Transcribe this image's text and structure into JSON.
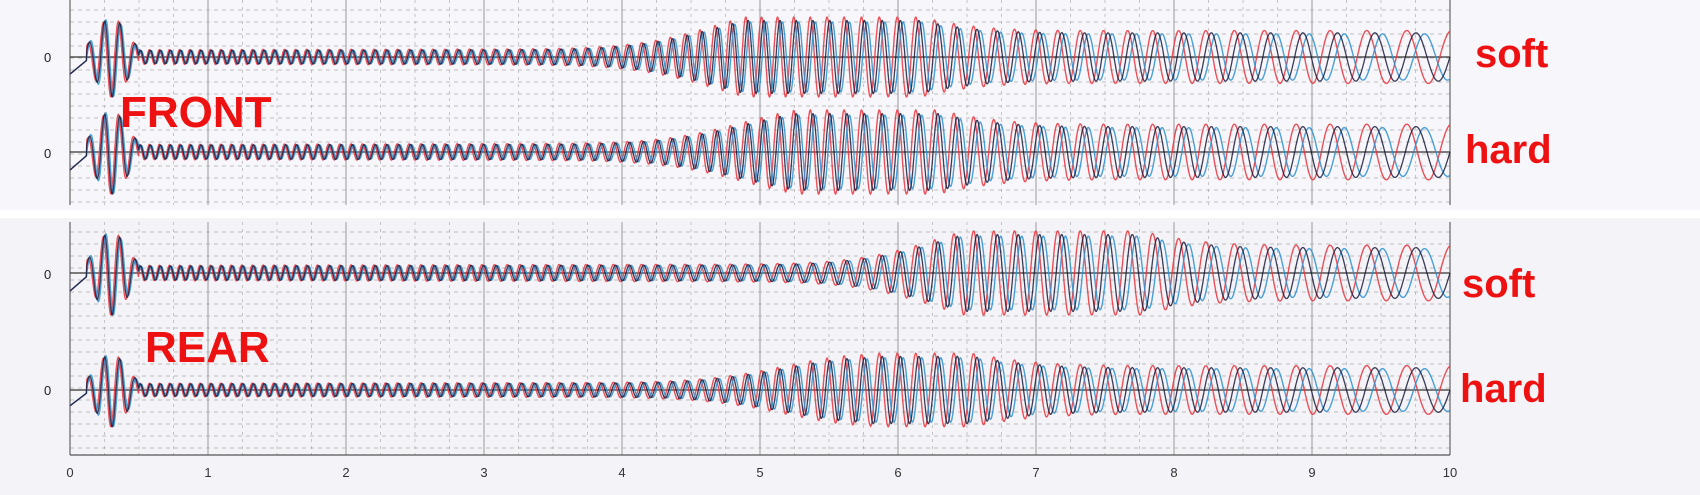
{
  "chart_data": {
    "type": "line",
    "x_ticks": [
      "0",
      "1",
      "2",
      "3",
      "4",
      "5",
      "6",
      "7",
      "8",
      "9",
      "10"
    ],
    "xlim": [
      0,
      10
    ],
    "grid": true,
    "series_colors": {
      "red": "#e8323c",
      "blue": "#2a8fd0",
      "dark": "#1a1a3a"
    },
    "label_color": "#ee1111",
    "groups": [
      {
        "label": "FRONT",
        "traces": [
          {
            "label": "soft",
            "zero_label": "0",
            "peak_x": 5.3,
            "peak_amplitude": 1.0
          },
          {
            "label": "hard",
            "zero_label": "0",
            "peak_x": 5.5,
            "peak_amplitude": 0.85
          }
        ]
      },
      {
        "label": "REAR",
        "traces": [
          {
            "label": "soft",
            "zero_label": "0",
            "peak_x": 6.9,
            "peak_amplitude": 1.0
          },
          {
            "label": "hard",
            "zero_label": "0",
            "peak_x": 5.8,
            "peak_amplitude": 0.75
          }
        ]
      }
    ]
  }
}
